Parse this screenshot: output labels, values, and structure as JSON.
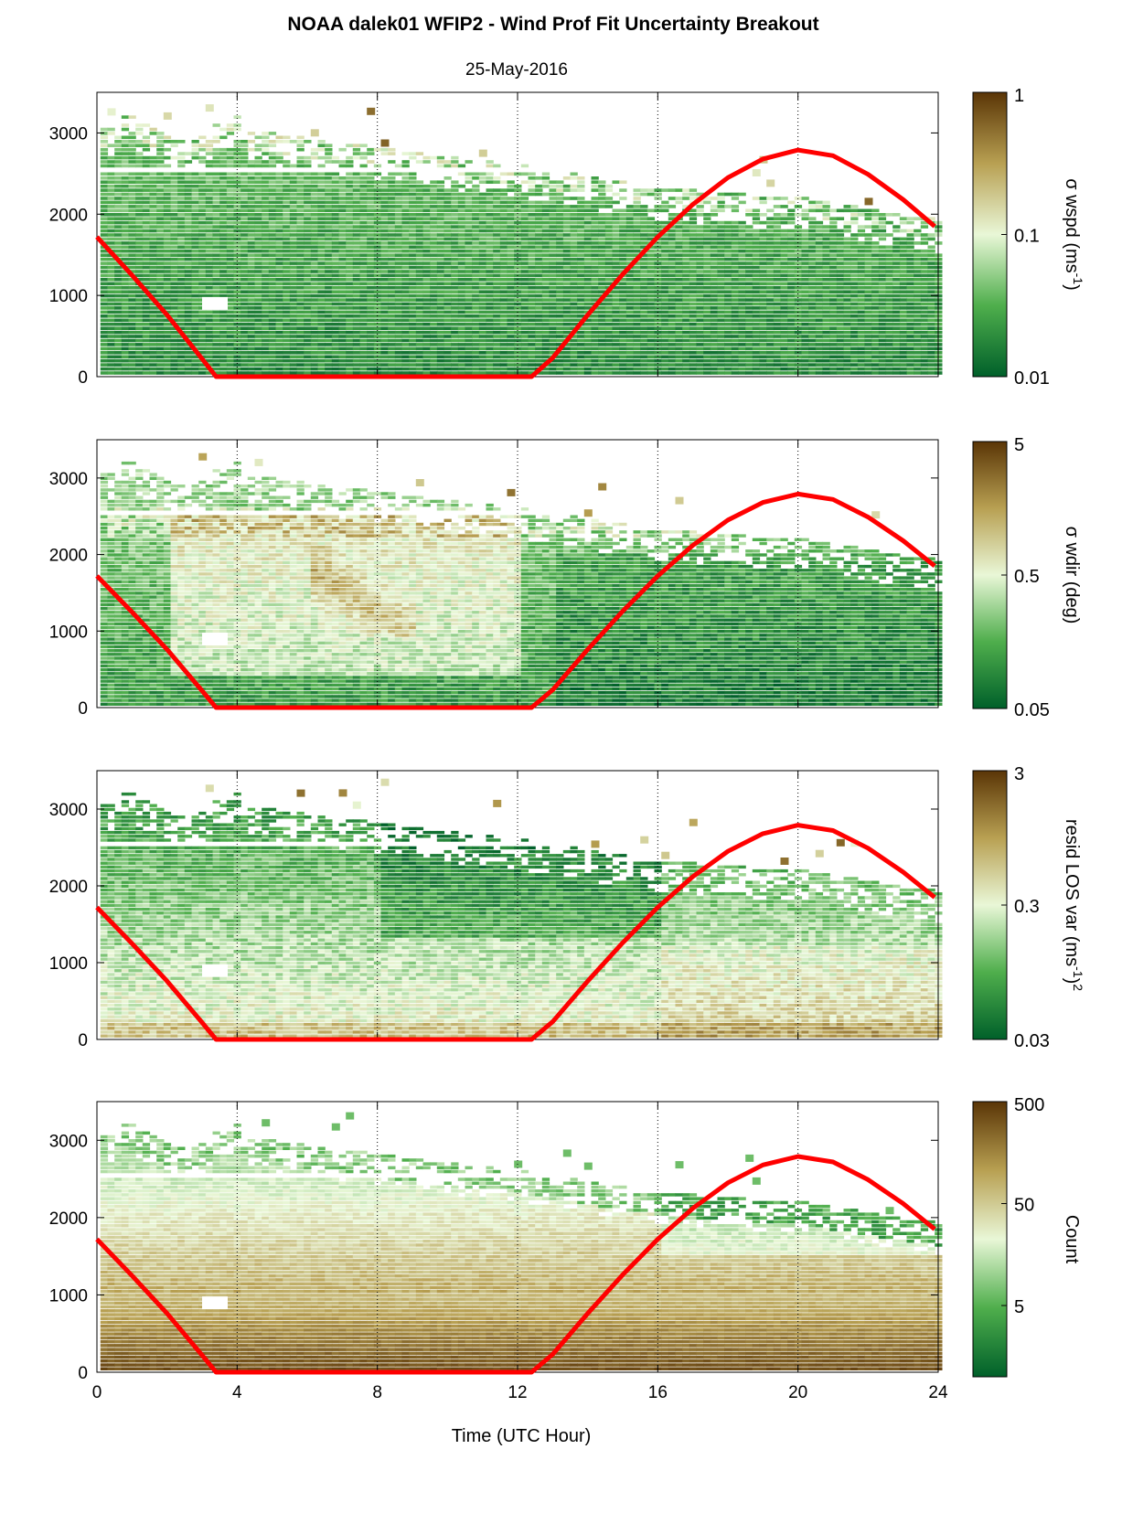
{
  "figure": {
    "title": "NOAA dalek01 WFIP2 - Wind Prof Fit Uncertainty Breakout",
    "subtitle": "25-May-2016",
    "xlabel": "Time (UTC Hour)",
    "accent_colors": {
      "sun_curve": "#ff0000",
      "colormap_low": "#00602a",
      "colormap_mid": "#e9f7d7",
      "colormap_high": "#5a3506",
      "gridline": "#000000"
    }
  },
  "chart_data": [
    {
      "type": "heatmap",
      "panel": "wspd",
      "colorbar_label": "σ wspd (ms",
      "colorbar_label_sup": "-1",
      "colorbar_label_end": ")",
      "colorbar_scale": "log",
      "colorbar_ticks": [
        "1",
        "0.1",
        "0.01"
      ],
      "colorbar_range": [
        0.01,
        1
      ],
      "x_range": [
        0,
        24
      ],
      "y_range": [
        0,
        3500
      ],
      "x_ticks": [
        "0",
        "4",
        "8",
        "12",
        "16",
        "20",
        "24"
      ],
      "y_ticks": [
        "0",
        "1000",
        "2000",
        "3000"
      ],
      "vertical_grid": [
        4,
        8,
        12,
        16,
        20
      ],
      "grid_style": "dotted"
    },
    {
      "type": "heatmap",
      "panel": "wdir",
      "colorbar_label": "σ wdir (deg)",
      "colorbar_label_sup": "",
      "colorbar_label_end": "",
      "colorbar_scale": "log",
      "colorbar_ticks": [
        "5",
        "0.5",
        "0.05"
      ],
      "colorbar_range": [
        0.05,
        5
      ],
      "x_range": [
        0,
        24
      ],
      "y_range": [
        0,
        3500
      ],
      "x_ticks": [
        "0",
        "4",
        "8",
        "12",
        "16",
        "20",
        "24"
      ],
      "y_ticks": [
        "0",
        "1000",
        "2000",
        "3000"
      ],
      "vertical_grid": [
        4,
        8,
        12,
        16,
        20
      ],
      "grid_style": "dotted"
    },
    {
      "type": "heatmap",
      "panel": "resid",
      "colorbar_label": "resid LOS var (ms",
      "colorbar_label_sup": "-1",
      "colorbar_label_end": ")",
      "colorbar_label_sup2": "2",
      "colorbar_scale": "log",
      "colorbar_ticks": [
        "3",
        "0.3",
        "0.03"
      ],
      "colorbar_range": [
        0.03,
        3
      ],
      "x_range": [
        0,
        24
      ],
      "y_range": [
        0,
        3500
      ],
      "x_ticks": [
        "0",
        "4",
        "8",
        "12",
        "16",
        "20",
        "24"
      ],
      "y_ticks": [
        "0",
        "1000",
        "2000",
        "3000"
      ],
      "vertical_grid": [
        4,
        8,
        12,
        16,
        20
      ],
      "grid_style": "dotted"
    },
    {
      "type": "heatmap",
      "panel": "count",
      "colorbar_label": "Count",
      "colorbar_label_sup": "",
      "colorbar_label_end": "",
      "colorbar_scale": "log",
      "colorbar_ticks": [
        "500",
        "50",
        "5"
      ],
      "colorbar_range": [
        1,
        500
      ],
      "x_range": [
        0,
        24
      ],
      "y_range": [
        0,
        3500
      ],
      "x_ticks": [
        "0",
        "4",
        "8",
        "12",
        "16",
        "20",
        "24"
      ],
      "y_ticks": [
        "0",
        "1000",
        "2000",
        "3000"
      ],
      "vertical_grid": [
        4,
        8,
        12,
        16,
        20
      ],
      "grid_style": "dotted"
    }
  ],
  "sun_curve": {
    "color": "#ff0000",
    "x": [
      0,
      1,
      2,
      3,
      3.4,
      12.4,
      13,
      14,
      15,
      16,
      17,
      18,
      19,
      20,
      21,
      22,
      23,
      23.9
    ],
    "y": [
      1720,
      1250,
      760,
      220,
      0,
      0,
      230,
      760,
      1260,
      1720,
      2120,
      2450,
      2680,
      2790,
      2720,
      2490,
      2180,
      1850
    ]
  }
}
